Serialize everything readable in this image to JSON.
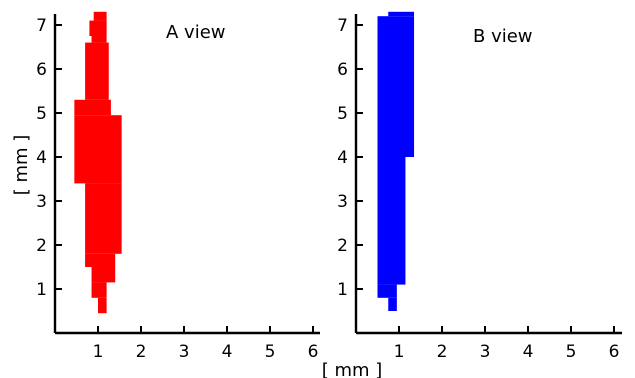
{
  "chart_data": [
    {
      "type": "bar",
      "title": "A view",
      "xlabel": "",
      "ylabel": "[ mm ]",
      "xlim": [
        0,
        6.5
      ],
      "ylim": [
        0,
        7.3
      ],
      "xticks": [
        1,
        2,
        3,
        4,
        5,
        6
      ],
      "yticks": [
        1,
        2,
        3,
        4,
        5,
        6,
        7
      ],
      "grid": false,
      "color": "#ff0000",
      "series": [
        {
          "description": "horizontal extent of filled profile at each height",
          "bands": [
            {
              "y": [
                0.45,
                0.8
              ],
              "x": [
                1.0,
                1.2
              ]
            },
            {
              "y": [
                0.8,
                1.15
              ],
              "x": [
                0.85,
                1.2
              ]
            },
            {
              "y": [
                1.15,
                1.5
              ],
              "x": [
                0.85,
                1.4
              ]
            },
            {
              "y": [
                1.5,
                1.8
              ],
              "x": [
                0.7,
                1.4
              ]
            },
            {
              "y": [
                1.8,
                3.4
              ],
              "x": [
                0.7,
                1.55
              ]
            },
            {
              "y": [
                3.4,
                4.95
              ],
              "x": [
                0.45,
                1.55
              ]
            },
            {
              "y": [
                4.95,
                5.3
              ],
              "x": [
                0.45,
                1.3
              ]
            },
            {
              "y": [
                5.3,
                6.6
              ],
              "x": [
                0.7,
                1.25
              ]
            },
            {
              "y": [
                6.6,
                6.75
              ],
              "x": [
                0.85,
                1.2
              ]
            },
            {
              "y": [
                6.75,
                7.1
              ],
              "x": [
                0.8,
                1.2
              ]
            },
            {
              "y": [
                7.1,
                7.3
              ],
              "x": [
                0.9,
                1.2
              ]
            }
          ]
        }
      ]
    },
    {
      "type": "bar",
      "title": "B view",
      "xlabel": "[ mm ]",
      "ylabel": "",
      "xlim": [
        0,
        6.5
      ],
      "ylim": [
        0,
        7.3
      ],
      "xticks": [
        1,
        2,
        3,
        4,
        5,
        6
      ],
      "yticks": [
        1,
        2,
        3,
        4,
        5,
        6,
        7
      ],
      "grid": false,
      "color": "#0000ff",
      "series": [
        {
          "description": "horizontal extent of filled profile at each height",
          "bands": [
            {
              "y": [
                0.5,
                0.8
              ],
              "x": [
                0.75,
                0.95
              ]
            },
            {
              "y": [
                0.8,
                1.1
              ],
              "x": [
                0.5,
                0.95
              ]
            },
            {
              "y": [
                1.1,
                4.0
              ],
              "x": [
                0.5,
                1.15
              ]
            },
            {
              "y": [
                4.0,
                7.2
              ],
              "x": [
                0.5,
                1.35
              ]
            },
            {
              "y": [
                7.2,
                7.3
              ],
              "x": [
                0.75,
                1.35
              ]
            }
          ]
        }
      ]
    }
  ]
}
